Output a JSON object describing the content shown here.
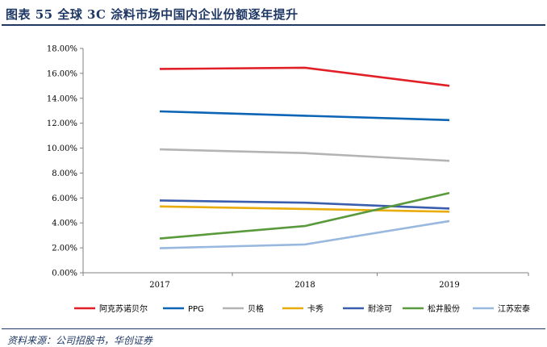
{
  "figure": {
    "title": "图表 55   全球 3C 涂料市场中国内企业份额逐年提升",
    "source": "资料来源：公司招股书，华创证券"
  },
  "colors": {
    "header_accent": "#1f3864",
    "axis": "#808080"
  },
  "chart_data": {
    "type": "line",
    "x": [
      "2017",
      "2018",
      "2019"
    ],
    "ylim": [
      0,
      18
    ],
    "yticks": [
      0,
      2,
      4,
      6,
      8,
      10,
      12,
      14,
      16,
      18
    ],
    "ytick_labels": [
      "0.00%",
      "2.00%",
      "4.00%",
      "6.00%",
      "8.00%",
      "10.00%",
      "12.00%",
      "14.00%",
      "16.00%",
      "18.00%"
    ],
    "y_unit": "%",
    "grid": false,
    "legend_position": "bottom",
    "series": [
      {
        "name": "阿克苏诺贝尔",
        "color": "#e11f26",
        "values": [
          16.35,
          16.45,
          15.0
        ]
      },
      {
        "name": "PPG",
        "color": "#0c64b4",
        "values": [
          12.95,
          12.6,
          12.25
        ]
      },
      {
        "name": "贝格",
        "color": "#b4b4b4",
        "values": [
          9.9,
          9.6,
          8.98
        ]
      },
      {
        "name": "卡秀",
        "color": "#e9ac0d",
        "values": [
          5.32,
          5.12,
          4.9
        ]
      },
      {
        "name": "耐涂可",
        "color": "#3a5dad",
        "values": [
          5.8,
          5.62,
          5.15
        ]
      },
      {
        "name": "松井股份",
        "color": "#5a9a3c",
        "values": [
          2.75,
          3.75,
          6.4
        ]
      },
      {
        "name": "江苏宏泰",
        "color": "#98b8df",
        "values": [
          1.97,
          2.27,
          4.15
        ]
      }
    ]
  }
}
